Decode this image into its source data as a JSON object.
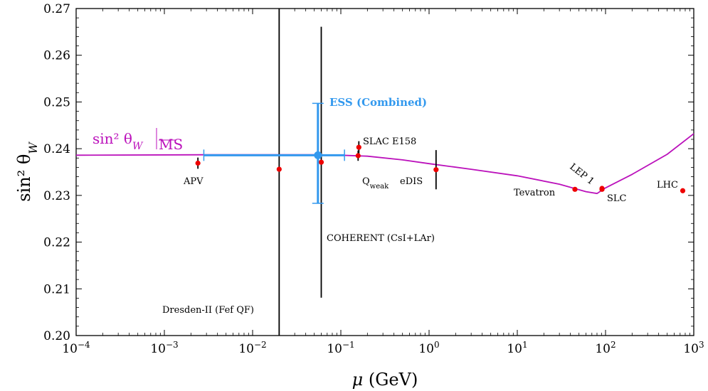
{
  "chart_data": {
    "type": "scatter",
    "title": "",
    "xlabel_symbol": "μ",
    "xlabel_unit": "(GeV)",
    "ylabel": "sin² θ",
    "ylabel_subscript": "W",
    "xscale": "log",
    "xlim": [
      0.0001,
      1000
    ],
    "ylim": [
      0.2,
      0.27
    ],
    "x_ticks": [
      {
        "base": "10",
        "exp": "−4",
        "value": 0.0001
      },
      {
        "base": "10",
        "exp": "−3",
        "value": 0.001
      },
      {
        "base": "10",
        "exp": "−2",
        "value": 0.01
      },
      {
        "base": "10",
        "exp": "−1",
        "value": 0.1
      },
      {
        "base": "10",
        "exp": "0",
        "value": 1
      },
      {
        "base": "10",
        "exp": "1",
        "value": 10
      },
      {
        "base": "10",
        "exp": "2",
        "value": 100
      },
      {
        "base": "10",
        "exp": "3",
        "value": 1000
      }
    ],
    "y_ticks": [
      "0.20",
      "0.21",
      "0.22",
      "0.23",
      "0.24",
      "0.25",
      "0.26",
      "0.27"
    ],
    "grid": false,
    "colors": {
      "curve": "#bb11bb",
      "ess": "#3399ee",
      "points": "#ee0000",
      "errorbars": "#000000"
    },
    "curve_label": "sin² θ",
    "curve_label_subscript": "W",
    "curve_label_scheme": "MS",
    "running_curve": [
      [
        0.0001,
        0.2386
      ],
      [
        0.003,
        0.2387
      ],
      [
        0.05,
        0.2387
      ],
      [
        0.1,
        0.2386
      ],
      [
        0.2,
        0.2384
      ],
      [
        0.5,
        0.2376
      ],
      [
        1,
        0.2368
      ],
      [
        3,
        0.2356
      ],
      [
        10,
        0.2342
      ],
      [
        30,
        0.2324
      ],
      [
        60,
        0.2308
      ],
      [
        80,
        0.2304
      ],
      [
        100,
        0.2316
      ],
      [
        200,
        0.2345
      ],
      [
        500,
        0.2388
      ],
      [
        1000,
        0.2432
      ]
    ],
    "measurements": [
      {
        "name": "APV",
        "x": 0.0024,
        "y": 0.2369,
        "yerr_low": 0.0012,
        "yerr_high": 0.0012
      },
      {
        "name": "Dresden-II (Fef QF)",
        "x": 0.02,
        "y": 0.2356,
        "yerr_low": 0.0356,
        "yerr_high": 0.0344
      },
      {
        "name": "COHERENT (CsI+LAr)",
        "x": 0.06,
        "y": 0.2371,
        "yerr_low": 0.029,
        "yerr_high": 0.029
      },
      {
        "name": "SLAC E158",
        "x": 0.16,
        "y": 0.2403,
        "yerr_low": 0.0013,
        "yerr_high": 0.0013
      },
      {
        "name": "Q",
        "name_subscript": "weak",
        "x": 0.157,
        "y": 0.2385,
        "yerr_low": 0.0011,
        "yerr_high": 0.0011
      },
      {
        "name": "eDIS",
        "x": 1.2,
        "y": 0.2355,
        "yerr_low": 0.0042,
        "yerr_high": 0.0042
      },
      {
        "name": "Tevatron",
        "x": 45,
        "y": 0.2313,
        "yerr_low": 0.0002,
        "yerr_high": 0.0002
      },
      {
        "name": "LEP 1",
        "x": 91.2,
        "y": 0.2315,
        "yerr_low": 0.0002,
        "yerr_high": 0.0002
      },
      {
        "name": "SLC",
        "x": 91.2,
        "y": 0.2313,
        "yerr_low": 0,
        "yerr_high": 0
      },
      {
        "name": "LHC",
        "x": 750,
        "y": 0.231,
        "yerr_low": 0,
        "yerr_high": 0
      }
    ],
    "ess_combined": {
      "name": "ESS (Combined)",
      "x": 0.055,
      "y": 0.2386,
      "xerr_low_x": 0.0028,
      "xerr_high_x": 0.11,
      "yerr_low": 0.0103,
      "yerr_high": 0.0111
    }
  }
}
